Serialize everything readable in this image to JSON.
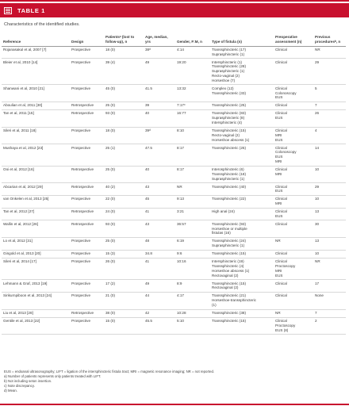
{
  "header": {
    "label": "TABLE 1",
    "caption": "Characteristics of the identified studies."
  },
  "columns": [
    "Reference",
    "Design",
    "Patientsᵃ (lost to follow-up), n",
    "Age, median, yrs",
    "Gender, F:M, n",
    "Type of fistula (n)",
    "Preoperative assessment (n)",
    "Previous proceduresᵇ, n"
  ],
  "rows": [
    {
      "ref": "Rojanasakul et al, 2007 [7]",
      "design": "Prospective",
      "patients": "18 (0)",
      "age": "38ᵈ",
      "gender": "4:14",
      "fistula": [
        "Transsphincteric (17)",
        "Suprasphincteric (1)"
      ],
      "assessment": [
        "Clinical"
      ],
      "prev": "NR"
    },
    {
      "ref": "Bleier et al, 2010 [14]",
      "design": "Prospective",
      "patients": "39 (4)",
      "age": "49",
      "gender": "19:20",
      "fistula": [
        "Intersphincteric (1)",
        "Transsphincteric (28)",
        "Suprasphincteric (1)",
        "Recto-vaginal (2)",
        "Horseshoe (7)"
      ],
      "assessment": [
        "Clinical"
      ],
      "prev": "29"
    },
    {
      "ref": "Shanwani et al, 2010 [21]",
      "design": "Prospective",
      "patients": "45 (0)",
      "age": "41.5",
      "gender": "13:32",
      "fistula": [
        "Complex (12)",
        "Transsphincteric (33)"
      ],
      "assessment": [
        "Clinical",
        "Colonoscopy",
        "EUS"
      ],
      "prev": "5"
    },
    {
      "ref": "Aboulian et al, 2011 [30]",
      "design": "Retrospective",
      "patients": "25 (0)",
      "age": "39",
      "gender": "7:17ᶜ",
      "fistula": [
        "Transsphincteric (25)"
      ],
      "assessment": [
        "Clinical"
      ],
      "prev": "7"
    },
    {
      "ref": "Tan et al, 2011 [15]",
      "design": "Retrospective",
      "patients": "93 (0)",
      "age": "40",
      "gender": "16:77",
      "fistula": [
        "Transsphincteric (83)",
        "Suprasphincteric (8)",
        "Intersphincteric (4)"
      ],
      "assessment": [
        "Clinical",
        "EUS"
      ],
      "prev": "26"
    },
    {
      "ref": "Sileri et al, 2011 [18]",
      "design": "Prospective",
      "patients": "18 (0)",
      "age": "39ᵈ",
      "gender": "8:10",
      "fistula": [
        "Transsphincteric (15)",
        "Recto-vaginal (2)",
        "Horseshoe abscess (1)"
      ],
      "assessment": [
        "Clinical",
        "MRI",
        "EUS"
      ],
      "prev": "4"
    },
    {
      "ref": "Mushaya et al, 2012 [23]",
      "design": "Prospective",
      "patients": "25 (1)",
      "age": "47.5",
      "gender": "8:17",
      "fistula": [
        "Transsphincteric (25)"
      ],
      "assessment": [
        "Clinical",
        "Colonoscopy",
        "EUS",
        "MRI"
      ],
      "prev": "14"
    },
    {
      "ref": "Ooi et al, 2012 [16]",
      "design": "Retrospective",
      "patients": "25 (0)",
      "age": "40",
      "gender": "8:17",
      "fistula": [
        "Interosphincteric (6)",
        "Transsphincteric (18)",
        "Suprasphincteric (1)"
      ],
      "assessment": [
        "Clinical",
        "MRI"
      ],
      "prev": "10"
    },
    {
      "ref": "Abcarian et al, 2012 [29]",
      "design": "Retrospective",
      "patients": "40 (2)",
      "age": "43",
      "gender": "NR",
      "fistula": [
        "Transsphincteric (40)"
      ],
      "assessment": [
        "Clinical",
        "EUS"
      ],
      "prev": "29"
    },
    {
      "ref": "van Onkelen et al, 2013 [25]",
      "design": "Prospective",
      "patients": "22 (0)",
      "age": "45",
      "gender": "9:13",
      "fistula": [
        "Transsphincteric (22)"
      ],
      "assessment": [
        "Clinical",
        "MRI"
      ],
      "prev": "10"
    },
    {
      "ref": "Tan et al, 2012 [27]",
      "design": "Retrospective",
      "patients": "24 (0)",
      "age": "41",
      "gender": "3:21",
      "fistula": [
        "High anal (24)"
      ],
      "assessment": [
        "Clinical",
        "EUS"
      ],
      "prev": "13"
    },
    {
      "ref": "Wallin et al, 2012 [26]",
      "design": "Retrospective",
      "patients": "93 (0)",
      "age": "43",
      "gender": "36:57",
      "fistula": [
        "Transsphincteric (93)",
        "Horseshoe or multiple",
        "fistulas (16)"
      ],
      "assessment": [
        "Clinical"
      ],
      "prev": "30"
    },
    {
      "ref": "Lo et al, 2012 [31]",
      "design": "Prospective",
      "patients": "25 (0)",
      "age": "48",
      "gender": "6:19",
      "fistula": [
        "Transsphincteric (24)",
        "Suprasphincteric (1)"
      ],
      "assessment": [
        "NR"
      ],
      "prev": "13"
    },
    {
      "ref": "Gingold et al, 2013 [20]",
      "design": "Prospective",
      "patients": "15 (3)",
      "age": "34.8",
      "gender": "9:6",
      "fistula": [
        "Transsphincteric (15)"
      ],
      "assessment": [
        "Clinical"
      ],
      "prev": "10"
    },
    {
      "ref": "Sileri et al, 2014 [17]",
      "design": "Prospective",
      "patients": "26 (0)",
      "age": "41",
      "gender": "10:16",
      "fistula": [
        "Intersphincteric (19)",
        "Transsphincteric (4)",
        "Horseshoe abscess (1)",
        "Rectovaginal (2)"
      ],
      "assessment": [
        "Clinical",
        "Proctoscopy",
        "MRI",
        "EUS"
      ],
      "prev": "NR"
    },
    {
      "ref": "Lehmann & Graf, 2013 [19]",
      "design": "Prospective",
      "patients": "17 (2)",
      "age": "49",
      "gender": "8:9",
      "fistula": [
        "Transsphincteric (15)",
        "Rectovaginal (2)"
      ],
      "assessment": [
        "Clinical"
      ],
      "prev": "17"
    },
    {
      "ref": "Sirikurnpiboon et al, 2013 [24]",
      "design": "Prospective",
      "patients": "21 (0)",
      "age": "44",
      "gender": "4:17",
      "fistula": [
        "Transsphincteric (21)",
        "Horseshoe-transsphincteric",
        "(1)"
      ],
      "assessment": [
        "Clinical"
      ],
      "prev": "None"
    },
    {
      "ref": "Liu et al, 2013 [28]",
      "design": "Retrospective",
      "patients": "38 (0)",
      "age": "42",
      "gender": "10:28",
      "fistula": [
        "Transsphincteric (38)"
      ],
      "assessment": [
        "NR"
      ],
      "prev": "7"
    },
    {
      "ref": "Gentile et al, 2013 [22]",
      "design": "Prospective",
      "patients": "15 (0)",
      "age": "45.5",
      "gender": "5:10",
      "fistula": [
        "Transsphincteric (15)"
      ],
      "assessment": [
        "Clinical",
        "Proctoscopy",
        "EUS (8)"
      ],
      "prev": "2"
    }
  ],
  "footnotes": [
    "EUS = endoanal ultrasonography;  LIFT = ligation of the intersphincteric fistula tract;  MRI = magnetic resonance imaging;  NR = not reported.",
    "a) Number of patients represents only patients treated with LIFT.",
    "b) Not including seton insertion.",
    "c) Note discrepancy.",
    "d) Mean."
  ],
  "colors": {
    "accent": "#c8102e"
  },
  "icons": {
    "table": "table-icon"
  }
}
